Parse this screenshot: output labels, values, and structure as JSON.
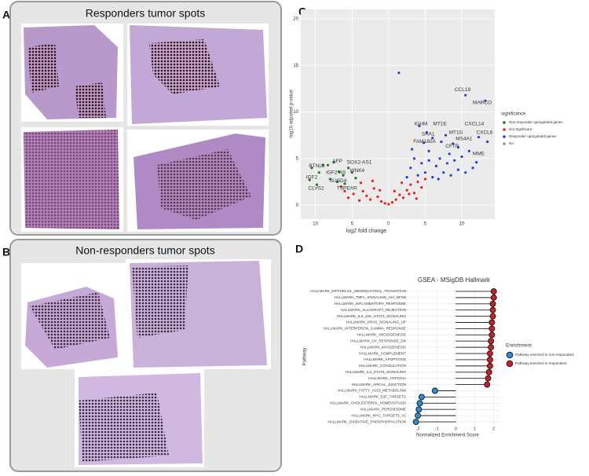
{
  "panels": {
    "A": {
      "label": "A",
      "title": "Responders tumor spots"
    },
    "B": {
      "label": "B",
      "title": "Non-responders tumor spots"
    },
    "C": {
      "label": "C"
    },
    "D": {
      "label": "D"
    }
  },
  "chart_data": [
    {
      "type": "scatter",
      "xlabel": "log2 fold change",
      "ylabel": "-log10 adjusted p-value",
      "xlim": [
        -12,
        14.5
      ],
      "ylim": [
        -1.5,
        21
      ],
      "xticks": [
        {
          "value": -10,
          "label": "10"
        },
        {
          "value": -5,
          "label": "5"
        },
        0,
        5,
        10
      ],
      "yticks": [
        0,
        5,
        10,
        15,
        20
      ],
      "grid": true,
      "legend_title": "significance",
      "legend": "right",
      "series": [
        {
          "name": "Non-responder upregulated genes",
          "color": "#1e7b1e",
          "x": [
            -10.5,
            -10.8,
            -9.5,
            -9,
            -8.3,
            -7.5,
            -6.8,
            -6.2,
            -5.5,
            -7,
            -8,
            -5,
            -4.5,
            -6,
            -9.8
          ],
          "y": [
            4,
            2.7,
            3.5,
            4.3,
            4.3,
            4.6,
            3.6,
            3.2,
            4,
            2.5,
            2.8,
            3.5,
            2.9,
            2.3,
            2.2
          ]
        },
        {
          "name": "Not Significant",
          "color": "#e8201c",
          "x": [
            -5.5,
            -4.8,
            -4,
            -3.5,
            -3,
            -2.5,
            -2,
            -1.5,
            -1,
            -0.5,
            0,
            0.5,
            1,
            1.5,
            2,
            2.5,
            3,
            3.5,
            4,
            4.5,
            -6,
            -6.5,
            -2.2,
            1.8,
            5,
            -3.8,
            0.8,
            -1.2,
            2.8,
            3.8
          ],
          "y": [
            0.8,
            1.2,
            0.5,
            1.5,
            1,
            0.6,
            1.8,
            0.9,
            0.4,
            0.2,
            0.1,
            0.3,
            0.6,
            1.1,
            0.8,
            1.6,
            2.2,
            1.3,
            2.5,
            1.9,
            1.5,
            2,
            2.6,
            2.4,
            2.8,
            2.4,
            1.5,
            1.6,
            1.2,
            0.7
          ]
        },
        {
          "name": "Responder upregulated genes",
          "color": "#1f3fe0",
          "x": [
            1.4,
            10.5,
            13.2,
            12.3,
            13.5,
            5.2,
            6,
            4.8,
            7.2,
            5.5,
            9.5,
            8.3,
            11.5,
            3,
            3.5,
            4,
            4.5,
            5,
            5.5,
            6,
            6.5,
            7,
            7.5,
            8,
            8.5,
            9,
            9.5,
            10,
            10.5,
            11,
            2.5,
            3.2,
            6.8,
            8.8,
            12,
            4.2,
            7.8
          ],
          "y": [
            14.2,
            11.8,
            11.2,
            7.3,
            6.8,
            7.8,
            7.2,
            6.7,
            6.8,
            5.8,
            6.2,
            5.5,
            4,
            4,
            5,
            3.2,
            4.5,
            3.5,
            4.8,
            3,
            4.2,
            5,
            3.5,
            4.5,
            3.2,
            4.8,
            3.8,
            5.2,
            3.5,
            5.8,
            3,
            6,
            2.8,
            6.6,
            4.6,
            8.5,
            7.5
          ]
        },
        {
          "name": "NA",
          "color": "#8c8c8c",
          "x": [],
          "y": []
        }
      ],
      "annotations": [
        {
          "text": "CCL19",
          "x": 10.1,
          "y": 12.4
        },
        {
          "text": "MARCO",
          "x": 12.8,
          "y": 11
        },
        {
          "text": "CXCL14",
          "x": 11.7,
          "y": 8.7
        },
        {
          "text": "CXCL6",
          "x": 13.1,
          "y": 7.8
        },
        {
          "text": "IGHM",
          "x": 4.4,
          "y": 8.7
        },
        {
          "text": "MT1E",
          "x": 7,
          "y": 8.7
        },
        {
          "text": "SAA1",
          "x": 5.4,
          "y": 7.6
        },
        {
          "text": "MT1G",
          "x": 9.2,
          "y": 7.8
        },
        {
          "text": "FAM180A",
          "x": 4.9,
          "y": 6.8
        },
        {
          "text": "MS4A1",
          "x": 10.3,
          "y": 7.1
        },
        {
          "text": "CFTR",
          "x": 8.7,
          "y": 6.3
        },
        {
          "text": "MME",
          "x": 12.3,
          "y": 5.5
        },
        {
          "text": "AFP",
          "x": -7,
          "y": 4.7
        },
        {
          "text": "SOX2-AS1",
          "x": -4,
          "y": 4.6
        },
        {
          "text": "WNK4",
          "x": -4.3,
          "y": 3.7
        },
        {
          "text": "BTNL8",
          "x": -9.8,
          "y": 4.2
        },
        {
          "text": "IGF2-AS",
          "x": -7.2,
          "y": 3.5
        },
        {
          "text": "SUSD4",
          "x": -6.9,
          "y": 2.6
        },
        {
          "text": "IGF2",
          "x": -10.5,
          "y": 3
        },
        {
          "text": "TSPEAR",
          "x": -5.7,
          "y": 1.8
        },
        {
          "text": "CLVS2",
          "x": -9.9,
          "y": 1.8
        }
      ]
    },
    {
      "type": "lollipop",
      "title": "GSEA - MSigDB Hallmark",
      "xlabel": "Normalized Enrichment Score",
      "ylabel": "Pathway",
      "xlim": [
        -2.5,
        2.3
      ],
      "xticks": [
        -2,
        -1,
        0,
        1,
        2
      ],
      "grid": true,
      "legend_title": "Enrichment",
      "legend": "right",
      "categories": [
        "HALLMARK_EPITHELIAL_MESENCHYMAL_TRANSITION",
        "HALLMARK_TNFA_SIGNALING_VIA_NFKB",
        "HALLMARK_INFLAMMATORY_RESPONSE",
        "HALLMARK_ALLOGRAFT_REJECTION",
        "HALLMARK_IL6_JAK_STAT3_SIGNALING",
        "HALLMARK_KRAS_SIGNALING_UP",
        "HALLMARK_INTERFERON_GAMMA_RESPONSE",
        "HALLMARK_ANGIOGENESIS",
        "HALLMARK_UV_RESPONSE_DN",
        "HALLMARK_MYOGENESIS",
        "HALLMARK_COMPLEMENT",
        "HALLMARK_APOPTOSIS",
        "HALLMARK_COAGULATION",
        "HALLMARK_IL2_STAT5_SIGNALING",
        "HALLMARK_HYPOXIA",
        "HALLMARK_APICAL_JUNCTION",
        "HALLMARK_FATTY_ACID_METABOLISM",
        "HALLMARK_E2F_TARGETS",
        "HALLMARK_CHOLESTEROL_HOMEOSTASIS",
        "HALLMARK_PEROXISOME",
        "HALLMARK_MYC_TARGETS_V1",
        "HALLMARK_OXIDATIVE_PHOSPHORYLATION"
      ],
      "series": [
        {
          "name": "Pathway enriched in non-responders",
          "color": "#2a8fd6",
          "values": [
            null,
            null,
            null,
            null,
            null,
            null,
            null,
            null,
            null,
            null,
            null,
            null,
            null,
            null,
            null,
            null,
            -1.1,
            -1.8,
            -1.9,
            -1.95,
            -2,
            -2.1
          ]
        },
        {
          "name": "Pathway enriched in responders",
          "color": "#c8202a",
          "values": [
            2,
            2,
            1.95,
            1.95,
            1.95,
            1.9,
            1.9,
            1.9,
            1.85,
            1.85,
            1.8,
            1.8,
            1.8,
            1.75,
            1.7,
            1.65,
            null,
            null,
            null,
            null,
            null,
            null
          ]
        }
      ]
    }
  ]
}
